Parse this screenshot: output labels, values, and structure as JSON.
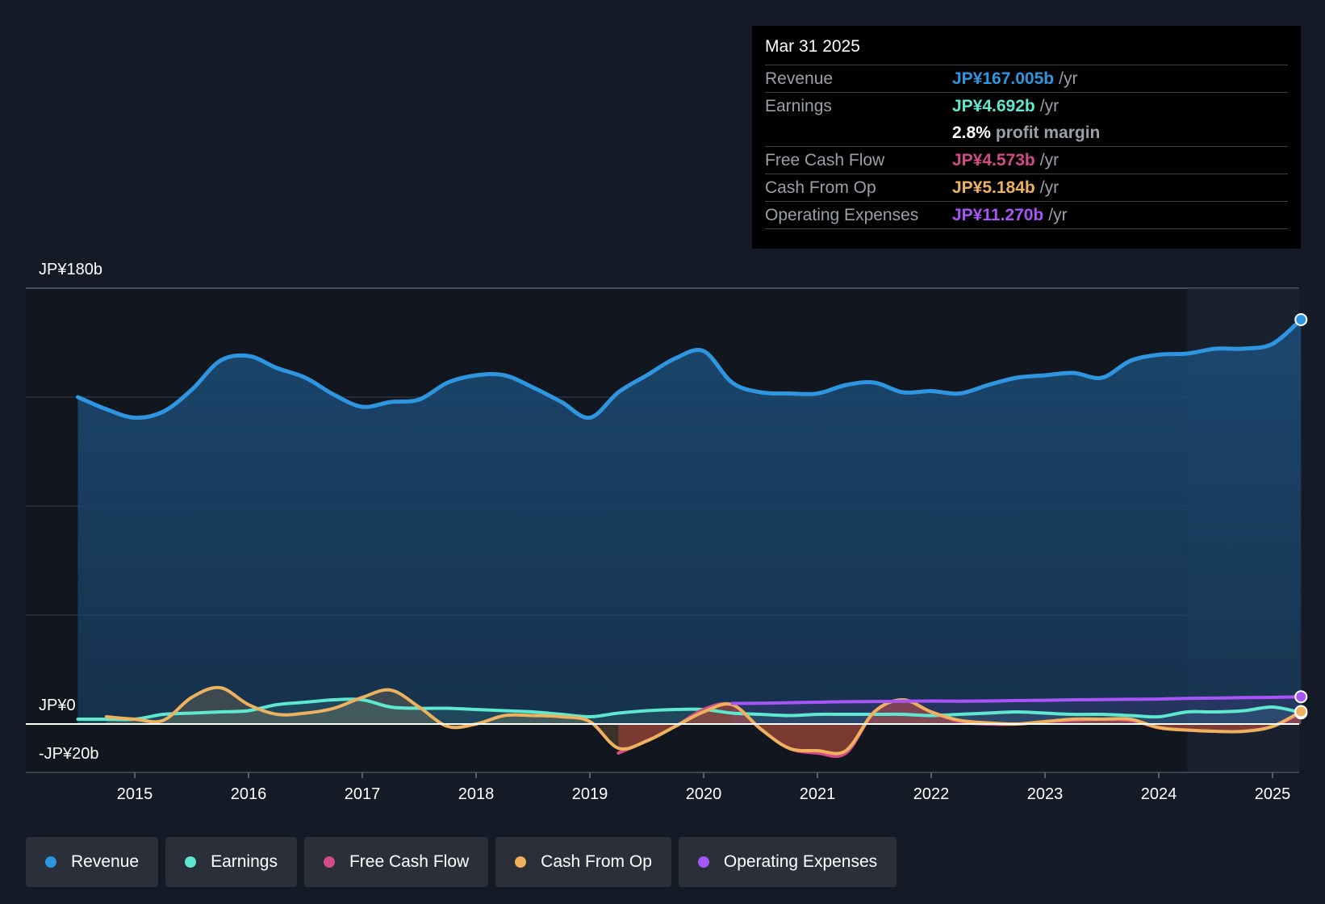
{
  "chart_data": {
    "type": "line",
    "y_unit": "JP¥ billions",
    "ylim": [
      -20,
      180
    ],
    "y_axis_labels": [
      "JP¥180b",
      "JP¥0",
      "-JP¥20b"
    ],
    "x_ticks": [
      "2015",
      "2016",
      "2017",
      "2018",
      "2019",
      "2020",
      "2021",
      "2022",
      "2023",
      "2024",
      "2025"
    ],
    "x_range": [
      2014.5,
      2025.25
    ],
    "forecast_shade_start": 2024.25,
    "series": [
      {
        "name": "Revenue",
        "color": "#2e96e0",
        "points": [
          [
            2014.5,
            135
          ],
          [
            2014.75,
            130
          ],
          [
            2015.0,
            126.5
          ],
          [
            2015.25,
            129
          ],
          [
            2015.5,
            138
          ],
          [
            2015.75,
            150
          ],
          [
            2016.0,
            152
          ],
          [
            2016.25,
            147
          ],
          [
            2016.5,
            143
          ],
          [
            2016.75,
            136
          ],
          [
            2017.0,
            131
          ],
          [
            2017.25,
            133
          ],
          [
            2017.5,
            134
          ],
          [
            2017.75,
            141
          ],
          [
            2018.0,
            144
          ],
          [
            2018.25,
            144
          ],
          [
            2018.5,
            139
          ],
          [
            2018.75,
            133
          ],
          [
            2019.0,
            126.5
          ],
          [
            2019.25,
            137
          ],
          [
            2019.5,
            144
          ],
          [
            2019.75,
            151
          ],
          [
            2020.0,
            154
          ],
          [
            2020.25,
            141
          ],
          [
            2020.5,
            137
          ],
          [
            2020.75,
            136.5
          ],
          [
            2021.0,
            136.5
          ],
          [
            2021.25,
            140
          ],
          [
            2021.5,
            141
          ],
          [
            2021.75,
            137
          ],
          [
            2022.0,
            137.5
          ],
          [
            2022.25,
            136.5
          ],
          [
            2022.5,
            140
          ],
          [
            2022.75,
            143
          ],
          [
            2023.0,
            144
          ],
          [
            2023.25,
            145
          ],
          [
            2023.5,
            143
          ],
          [
            2023.75,
            150
          ],
          [
            2024.0,
            152.5
          ],
          [
            2024.25,
            153
          ],
          [
            2024.5,
            155
          ],
          [
            2024.75,
            155
          ],
          [
            2025.0,
            157
          ],
          [
            2025.25,
            167
          ]
        ]
      },
      {
        "name": "Earnings",
        "color": "#5ee8cf",
        "points": [
          [
            2014.5,
            2
          ],
          [
            2014.75,
            2
          ],
          [
            2015.0,
            2
          ],
          [
            2015.25,
            4
          ],
          [
            2015.5,
            4.5
          ],
          [
            2015.75,
            5
          ],
          [
            2016.0,
            5.5
          ],
          [
            2016.25,
            8
          ],
          [
            2016.5,
            9
          ],
          [
            2016.75,
            10
          ],
          [
            2017.0,
            10
          ],
          [
            2017.25,
            7
          ],
          [
            2017.5,
            6.5
          ],
          [
            2017.75,
            6.5
          ],
          [
            2018.0,
            6
          ],
          [
            2018.25,
            5.5
          ],
          [
            2018.5,
            5
          ],
          [
            2018.75,
            4
          ],
          [
            2019.0,
            3
          ],
          [
            2019.25,
            4.5
          ],
          [
            2019.5,
            5.5
          ],
          [
            2019.75,
            6
          ],
          [
            2020.0,
            6
          ],
          [
            2020.25,
            4.5
          ],
          [
            2020.5,
            4
          ],
          [
            2020.75,
            3.5
          ],
          [
            2021.0,
            4
          ],
          [
            2021.25,
            4
          ],
          [
            2021.5,
            4
          ],
          [
            2021.75,
            4
          ],
          [
            2022.0,
            3.5
          ],
          [
            2022.25,
            4
          ],
          [
            2022.5,
            4.5
          ],
          [
            2022.75,
            5
          ],
          [
            2023.0,
            4.5
          ],
          [
            2023.25,
            4
          ],
          [
            2023.5,
            4
          ],
          [
            2023.75,
            3.5
          ],
          [
            2024.0,
            3
          ],
          [
            2024.25,
            5
          ],
          [
            2024.5,
            5
          ],
          [
            2024.75,
            5.5
          ],
          [
            2025.0,
            7
          ],
          [
            2025.25,
            4.7
          ]
        ]
      },
      {
        "name": "Free Cash Flow",
        "color": "#d44a87",
        "points": [
          [
            2019.25,
            -12
          ],
          [
            2019.5,
            -7
          ],
          [
            2019.75,
            -1
          ],
          [
            2020.0,
            6
          ],
          [
            2020.25,
            8
          ],
          [
            2020.5,
            -2
          ],
          [
            2020.75,
            -10
          ],
          [
            2021.0,
            -12
          ],
          [
            2021.25,
            -12
          ],
          [
            2021.5,
            5
          ],
          [
            2021.75,
            10
          ],
          [
            2022.0,
            5
          ],
          [
            2022.25,
            1
          ],
          [
            2022.5,
            0
          ],
          [
            2022.75,
            0
          ],
          [
            2023.0,
            1
          ],
          [
            2023.25,
            1.5
          ],
          [
            2023.5,
            2
          ],
          [
            2023.75,
            1.5
          ],
          [
            2024.0,
            -1.5
          ],
          [
            2024.25,
            -2.5
          ],
          [
            2024.5,
            -3
          ],
          [
            2024.75,
            -3
          ],
          [
            2025.0,
            -1
          ],
          [
            2025.25,
            4.57
          ]
        ]
      },
      {
        "name": "Cash From Op",
        "color": "#eeb15e",
        "points": [
          [
            2014.75,
            3
          ],
          [
            2015.0,
            2
          ],
          [
            2015.25,
            1.5
          ],
          [
            2015.5,
            11
          ],
          [
            2015.75,
            15
          ],
          [
            2016.0,
            8
          ],
          [
            2016.25,
            4
          ],
          [
            2016.5,
            4.5
          ],
          [
            2016.75,
            6.5
          ],
          [
            2017.0,
            11
          ],
          [
            2017.25,
            14
          ],
          [
            2017.5,
            7
          ],
          [
            2017.75,
            -1
          ],
          [
            2018.0,
            0
          ],
          [
            2018.25,
            3.5
          ],
          [
            2018.5,
            3.5
          ],
          [
            2018.75,
            3
          ],
          [
            2019.0,
            1
          ],
          [
            2019.25,
            -10
          ],
          [
            2019.5,
            -7
          ],
          [
            2019.75,
            -1
          ],
          [
            2020.0,
            5
          ],
          [
            2020.25,
            8
          ],
          [
            2020.5,
            -2
          ],
          [
            2020.75,
            -10
          ],
          [
            2021.0,
            -11
          ],
          [
            2021.25,
            -11
          ],
          [
            2021.5,
            5
          ],
          [
            2021.75,
            10
          ],
          [
            2022.0,
            5
          ],
          [
            2022.25,
            1.5
          ],
          [
            2022.5,
            0.5
          ],
          [
            2022.75,
            0
          ],
          [
            2023.0,
            1
          ],
          [
            2023.25,
            2
          ],
          [
            2023.5,
            2
          ],
          [
            2023.75,
            2
          ],
          [
            2024.0,
            -1.5
          ],
          [
            2024.25,
            -2.5
          ],
          [
            2024.5,
            -3
          ],
          [
            2024.75,
            -3
          ],
          [
            2025.0,
            -1
          ],
          [
            2025.25,
            5.18
          ]
        ]
      },
      {
        "name": "Operating Expenses",
        "color": "#a855f7",
        "points": [
          [
            2020.25,
            8.5
          ],
          [
            2020.5,
            8.6
          ],
          [
            2020.75,
            8.8
          ],
          [
            2021.0,
            9
          ],
          [
            2021.25,
            9.2
          ],
          [
            2021.5,
            9.3
          ],
          [
            2021.75,
            9.4
          ],
          [
            2022.0,
            9.5
          ],
          [
            2022.25,
            9.4
          ],
          [
            2022.5,
            9.5
          ],
          [
            2022.75,
            9.7
          ],
          [
            2023.0,
            9.8
          ],
          [
            2023.25,
            10
          ],
          [
            2023.5,
            10.1
          ],
          [
            2023.75,
            10.2
          ],
          [
            2024.0,
            10.3
          ],
          [
            2024.25,
            10.6
          ],
          [
            2024.5,
            10.7
          ],
          [
            2024.75,
            10.9
          ],
          [
            2025.0,
            11
          ],
          [
            2025.25,
            11.27
          ]
        ]
      }
    ]
  },
  "tooltip": {
    "date": "Mar 31 2025",
    "rows": [
      {
        "label": "Revenue",
        "value": "JP¥167.005b",
        "unit": "/yr",
        "color": "#2e96e0"
      },
      {
        "label": "Earnings",
        "value": "JP¥4.692b",
        "unit": "/yr",
        "color": "#5ee8cf"
      },
      {
        "label": "",
        "value": "2.8%",
        "unit": "profit margin",
        "color": "#ffffff"
      },
      {
        "label": "Free Cash Flow",
        "value": "JP¥4.573b",
        "unit": "/yr",
        "color": "#d44a87"
      },
      {
        "label": "Cash From Op",
        "value": "JP¥5.184b",
        "unit": "/yr",
        "color": "#eeb15e"
      },
      {
        "label": "Operating Expenses",
        "value": "JP¥11.270b",
        "unit": "/yr",
        "color": "#a855f7"
      }
    ]
  },
  "legend": [
    {
      "label": "Revenue",
      "color": "#2e96e0"
    },
    {
      "label": "Earnings",
      "color": "#5ee8cf"
    },
    {
      "label": "Free Cash Flow",
      "color": "#d44a87"
    },
    {
      "label": "Cash From Op",
      "color": "#eeb15e"
    },
    {
      "label": "Operating Expenses",
      "color": "#a855f7"
    }
  ]
}
